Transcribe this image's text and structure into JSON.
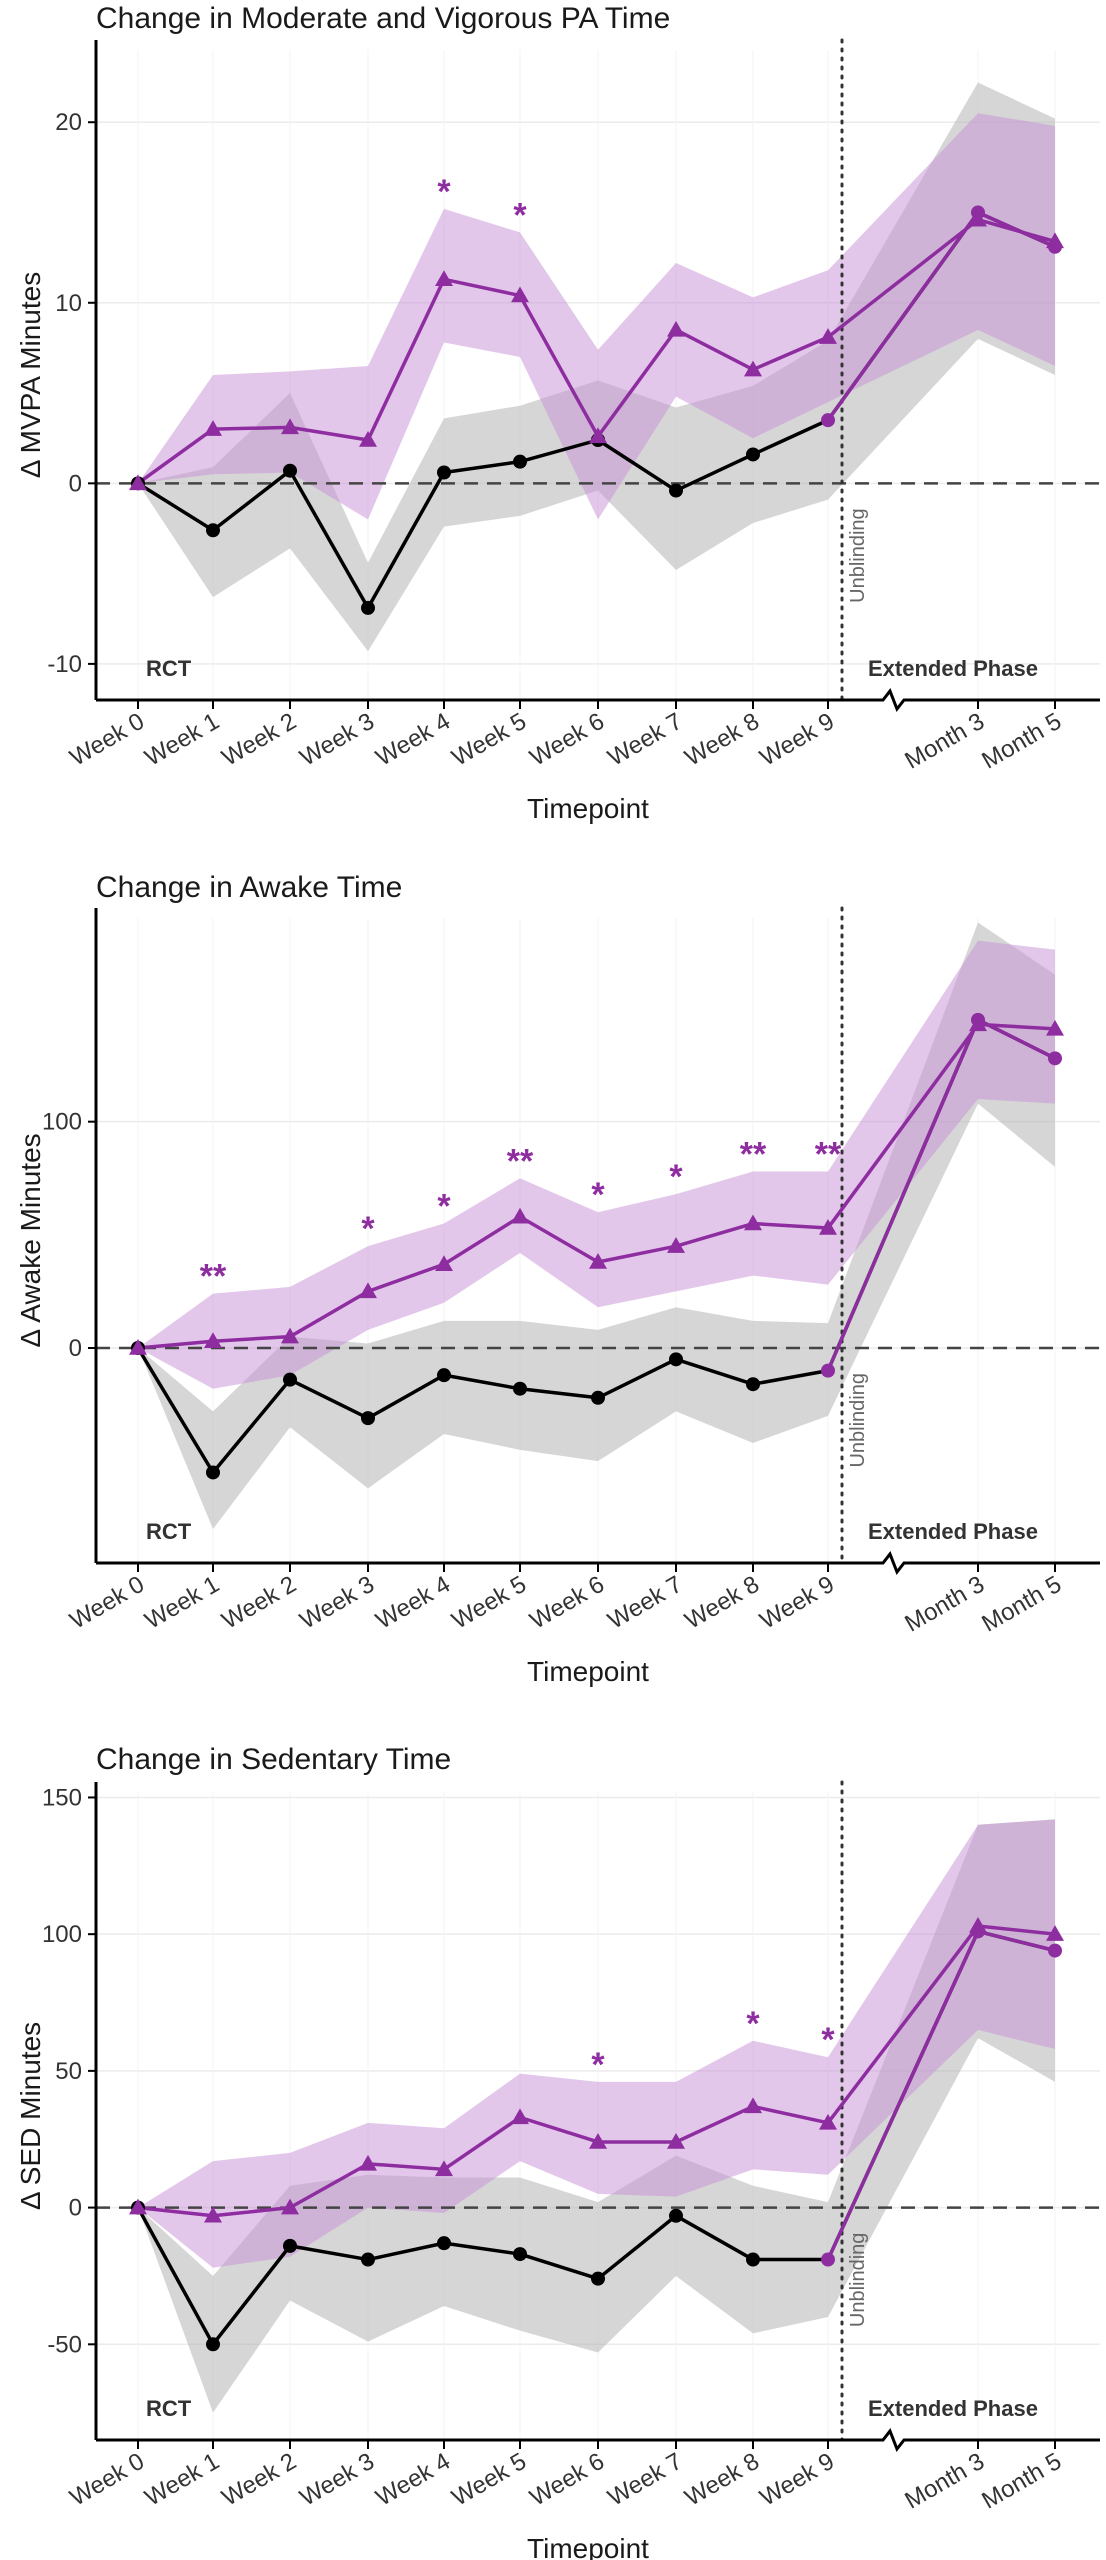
{
  "chart_data": [
    {
      "type": "line",
      "title": "Change in Moderate and Vigorous PA Time",
      "xlabel": "Timepoint",
      "ylabel": "Δ MVPA Minutes",
      "ylim": [
        -12,
        24
      ],
      "yticks": [
        -10,
        0,
        10,
        20
      ],
      "grid": true,
      "rct_label": "RCT",
      "extended_label": "Extended Phase",
      "unblinding_label": "Unblinding",
      "categories": [
        "Week 0",
        "Week 1",
        "Week 2",
        "Week 3",
        "Week 4",
        "Week 5",
        "Week 6",
        "Week 7",
        "Week 8",
        "Week 9",
        "Month 3",
        "Month 5"
      ],
      "colors": {
        "intervention": "#8e2da0",
        "control": "#000000",
        "intervention_band": "#c88fd8",
        "control_band": "#b5b5b5"
      },
      "series": [
        {
          "marker": "triangle",
          "values": [
            0,
            3.0,
            3.1,
            2.4,
            11.3,
            10.4,
            2.6,
            8.5,
            6.3,
            8.1,
            14.6,
            13.4
          ],
          "lower": [
            0,
            0.5,
            0.6,
            -2.0,
            7.8,
            7.0,
            -2.0,
            4.8,
            2.5,
            4.5,
            8.5,
            6.5
          ],
          "upper": [
            0,
            6.0,
            6.2,
            6.5,
            15.2,
            13.9,
            7.4,
            12.2,
            10.3,
            11.8,
            20.5,
            19.8
          ]
        },
        {
          "marker": "circle",
          "values": [
            0,
            -2.6,
            0.7,
            -6.9,
            0.6,
            1.2,
            2.4,
            -0.4,
            1.6,
            3.5,
            15.0,
            13.1
          ],
          "lower": [
            0,
            -6.3,
            -3.6,
            -9.3,
            -2.4,
            -1.8,
            -0.4,
            -4.8,
            -2.2,
            -0.9,
            8.0,
            6.0
          ],
          "upper": [
            0,
            0.9,
            5.0,
            -4.4,
            3.6,
            4.3,
            5.7,
            4.2,
            5.4,
            7.9,
            22.2,
            20.2
          ]
        }
      ],
      "significance": [
        {
          "category": "Week 4",
          "label": "*"
        },
        {
          "category": "Week 5",
          "label": "*"
        }
      ]
    },
    {
      "type": "line",
      "title": "Change in Awake Time",
      "xlabel": "Timepoint",
      "ylabel": "Δ Awake Minutes",
      "ylim": [
        -95,
        190
      ],
      "yticks": [
        0,
        100
      ],
      "grid": true,
      "rct_label": "RCT",
      "extended_label": "Extended Phase",
      "unblinding_label": "Unblinding",
      "categories": [
        "Week 0",
        "Week 1",
        "Week 2",
        "Week 3",
        "Week 4",
        "Week 5",
        "Week 6",
        "Week 7",
        "Week 8",
        "Week 9",
        "Month 3",
        "Month 5"
      ],
      "colors": {
        "intervention": "#8e2da0",
        "control": "#000000",
        "intervention_band": "#c88fd8",
        "control_band": "#b5b5b5"
      },
      "series": [
        {
          "marker": "triangle",
          "values": [
            0,
            3,
            5,
            25,
            37,
            58,
            38,
            45,
            55,
            53,
            143,
            141
          ],
          "lower": [
            0,
            -18,
            -12,
            8,
            20,
            42,
            18,
            25,
            32,
            28,
            110,
            108
          ],
          "upper": [
            0,
            24,
            27,
            45,
            55,
            75,
            60,
            68,
            78,
            78,
            180,
            176
          ]
        },
        {
          "marker": "circle",
          "values": [
            0,
            -55,
            -14,
            -31,
            -12,
            -18,
            -22,
            -5,
            -16,
            -10,
            145,
            128
          ],
          "lower": [
            0,
            -80,
            -35,
            -62,
            -38,
            -45,
            -50,
            -28,
            -42,
            -30,
            108,
            80
          ],
          "upper": [
            0,
            -28,
            5,
            2,
            12,
            12,
            8,
            18,
            12,
            11,
            188,
            165
          ]
        }
      ],
      "significance": [
        {
          "category": "Week 1",
          "label": "**"
        },
        {
          "category": "Week 3",
          "label": "*"
        },
        {
          "category": "Week 4",
          "label": "*"
        },
        {
          "category": "Week 5",
          "label": "**"
        },
        {
          "category": "Week 6",
          "label": "*"
        },
        {
          "category": "Week 7",
          "label": "*"
        },
        {
          "category": "Week 8",
          "label": "**"
        },
        {
          "category": "Week 9",
          "label": "**"
        }
      ]
    },
    {
      "type": "line",
      "title": "Change in Sedentary Time",
      "xlabel": "Timepoint",
      "ylabel": "Δ SED Minutes",
      "ylim": [
        -85,
        152
      ],
      "yticks": [
        -50,
        0,
        50,
        100,
        150
      ],
      "grid": true,
      "rct_label": "RCT",
      "extended_label": "Extended Phase",
      "unblinding_label": "Unblinding",
      "categories": [
        "Week 0",
        "Week 1",
        "Week 2",
        "Week 3",
        "Week 4",
        "Week 5",
        "Week 6",
        "Week 7",
        "Week 8",
        "Week 9",
        "Month 3",
        "Month 5"
      ],
      "colors": {
        "intervention": "#8e2da0",
        "control": "#000000",
        "intervention_band": "#c88fd8",
        "control_band": "#b5b5b5"
      },
      "series": [
        {
          "marker": "triangle",
          "values": [
            0,
            -3,
            0,
            16,
            14,
            33,
            24,
            24,
            37,
            31,
            103,
            100
          ],
          "lower": [
            0,
            -22,
            -18,
            0,
            -2,
            17,
            5,
            4,
            14,
            12,
            65,
            58
          ],
          "upper": [
            0,
            17,
            20,
            31,
            29,
            49,
            46,
            46,
            61,
            55,
            140,
            142
          ]
        },
        {
          "marker": "circle",
          "values": [
            0,
            -50,
            -14,
            -19,
            -13,
            -17,
            -26,
            -3,
            -19,
            -19,
            101,
            94
          ],
          "lower": [
            0,
            -75,
            -34,
            -49,
            -36,
            -45,
            -53,
            -25,
            -46,
            -40,
            62,
            46
          ],
          "upper": [
            0,
            -25,
            8,
            12,
            11,
            11,
            2,
            19,
            8,
            2,
            140,
            142
          ]
        }
      ],
      "significance": [
        {
          "category": "Week 6",
          "label": "*"
        },
        {
          "category": "Week 8",
          "label": "*"
        },
        {
          "category": "Week 9",
          "label": "*"
        }
      ]
    }
  ]
}
